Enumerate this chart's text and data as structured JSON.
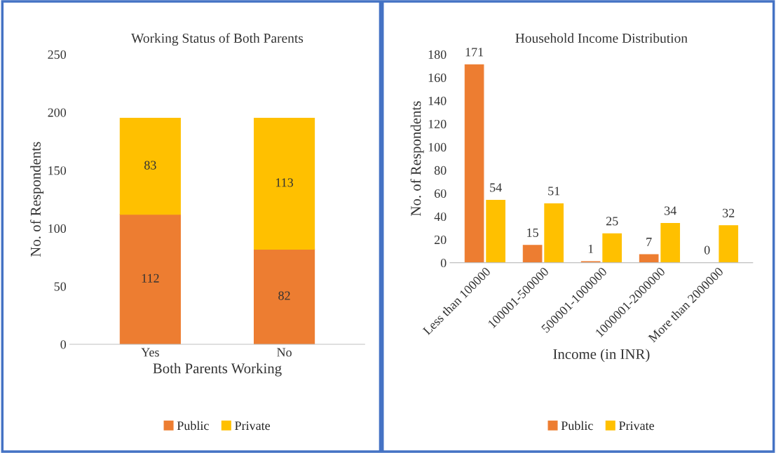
{
  "chart_data": [
    {
      "type": "bar",
      "title": "Working Status of Both Parents",
      "xlabel": "Both Parents Working",
      "ylabel": "No. of Respondents",
      "categories": [
        "Yes",
        "No"
      ],
      "stacked": true,
      "series": [
        {
          "name": "Public",
          "color": "#ed7d31",
          "values": [
            112,
            82
          ]
        },
        {
          "name": "Private",
          "color": "#ffc000",
          "values": [
            83,
            113
          ]
        }
      ],
      "ylim": [
        0,
        250
      ],
      "yticks": [
        0,
        50,
        100,
        150,
        200,
        250
      ],
      "data_labels": true,
      "legend": "bottom",
      "grid": false
    },
    {
      "type": "bar",
      "title": "Household Income Distribution",
      "xlabel": "Income (in INR)",
      "ylabel": "No. of Respondents",
      "categories": [
        "Less than 100000",
        "100001-500000",
        "500001-1000000",
        "1000001-2000000",
        "More than 2000000"
      ],
      "series": [
        {
          "name": "Public",
          "color": "#ed7d31",
          "values": [
            171,
            15,
            1,
            7,
            0
          ]
        },
        {
          "name": "Private",
          "color": "#ffc000",
          "values": [
            54,
            51,
            25,
            34,
            32
          ]
        }
      ],
      "ylim": [
        0,
        180
      ],
      "yticks": [
        0,
        20,
        40,
        60,
        80,
        100,
        120,
        140,
        160,
        180
      ],
      "data_labels": true,
      "legend": "bottom",
      "grid": false
    }
  ]
}
